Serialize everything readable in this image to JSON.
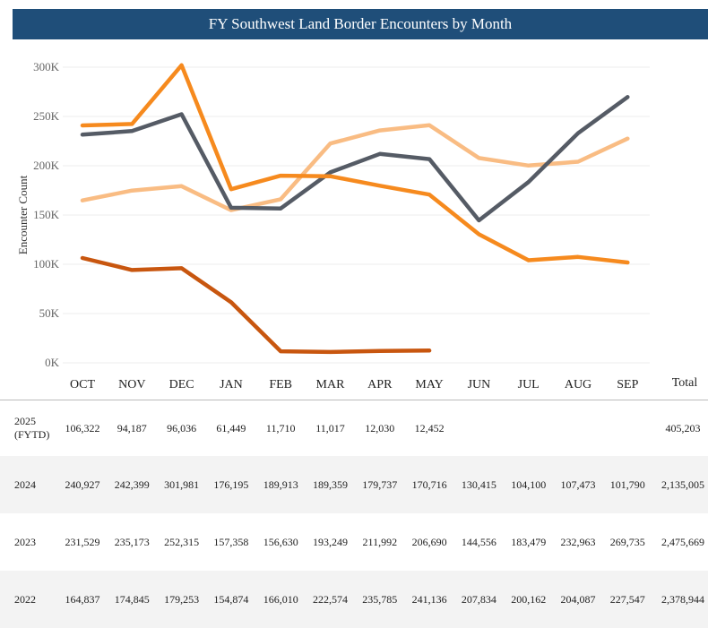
{
  "title": "FY Southwest Land Border Encounters by Month",
  "total_header": "Total",
  "colors": {
    "2025 (FYTD)": "#c8560f",
    "2024": "#f68a1e",
    "2023": "#555b65",
    "2022": "#f9bc83"
  },
  "chart_data": {
    "type": "line",
    "title": "FY Southwest Land Border Encounters by Month",
    "xlabel": "",
    "ylabel": "Encounter Count",
    "ylim": [
      0,
      300000
    ],
    "yticks": [
      0,
      50000,
      100000,
      150000,
      200000,
      250000,
      300000
    ],
    "ytick_labels": [
      "0K",
      "50K",
      "100K",
      "150K",
      "200K",
      "250K",
      "300K"
    ],
    "grid": true,
    "categories": [
      "OCT",
      "NOV",
      "DEC",
      "JAN",
      "FEB",
      "MAR",
      "APR",
      "MAY",
      "JUN",
      "JUL",
      "AUG",
      "SEP"
    ],
    "series": [
      {
        "name": "2025 (FYTD)",
        "values": [
          106322,
          94187,
          96036,
          61449,
          11710,
          11017,
          12030,
          12452,
          null,
          null,
          null,
          null
        ],
        "total": "405,203"
      },
      {
        "name": "2024",
        "values": [
          240927,
          242399,
          301981,
          176195,
          189913,
          189359,
          179737,
          170716,
          130415,
          104100,
          107473,
          101790
        ],
        "total": "2,135,005"
      },
      {
        "name": "2023",
        "values": [
          231529,
          235173,
          252315,
          157358,
          156630,
          193249,
          211992,
          206690,
          144556,
          183479,
          232963,
          269735
        ],
        "total": "2,475,669"
      },
      {
        "name": "2022",
        "values": [
          164837,
          174845,
          179253,
          154874,
          166010,
          222574,
          235785,
          241136,
          207834,
          200162,
          204087,
          227547
        ],
        "total": "2,378,944"
      }
    ]
  }
}
